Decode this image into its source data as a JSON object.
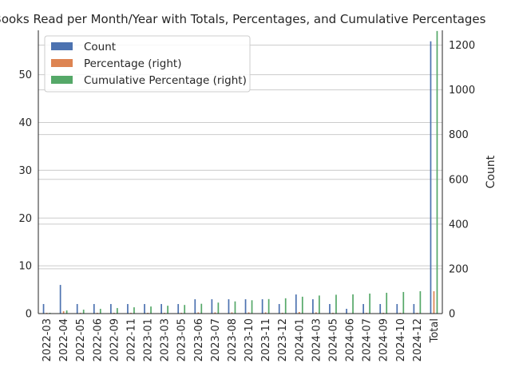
{
  "chart_data": {
    "type": "bar",
    "title": "Books Read per Month/Year with Totals, Percentages, and Cumulative Percentages",
    "xlabel": "",
    "ylabel": "",
    "ylabel_right": "Count",
    "categories": [
      "2022-03",
      "2022-04",
      "2022-05",
      "2022-06",
      "2022-09",
      "2022-11",
      "2023-01",
      "2023-03",
      "2023-05",
      "2023-06",
      "2023-07",
      "2023-08",
      "2023-10",
      "2023-11",
      "2023-12",
      "2024-01",
      "2024-03",
      "2024-05",
      "2024-06",
      "2024-07",
      "2024-09",
      "2024-10",
      "2024-12",
      "Total"
    ],
    "ylim": [
      0,
      59.3
    ],
    "ylim_right": [
      0,
      1266
    ],
    "yticks": [
      0,
      10,
      20,
      30,
      40,
      50
    ],
    "yticks_right": [
      0,
      200,
      400,
      600,
      800,
      1000,
      1200
    ],
    "grid": true,
    "legend_position": "top-left",
    "series": [
      {
        "name": "Count",
        "axis": "left",
        "color": "#4c72b0",
        "values": [
          2,
          6,
          2,
          2,
          2,
          2,
          2,
          2,
          2,
          3,
          3,
          3,
          3,
          3,
          2,
          4,
          3,
          2,
          1,
          2,
          2,
          2,
          2,
          57
        ]
      },
      {
        "name": "Percentage (right)",
        "axis": "right",
        "color": "#dd8452",
        "values": [
          3.5,
          10.5,
          3.5,
          3.5,
          3.5,
          3.5,
          3.5,
          3.5,
          3.5,
          5.3,
          5.3,
          5.3,
          5.3,
          5.3,
          3.5,
          7.0,
          5.3,
          3.5,
          1.8,
          3.5,
          3.5,
          3.5,
          3.5,
          100
        ]
      },
      {
        "name": "Cumulative Percentage (right)",
        "axis": "right",
        "color": "#55a868",
        "values": [
          3.5,
          14.0,
          17.5,
          21.1,
          24.6,
          28.1,
          31.6,
          35.1,
          38.6,
          43.9,
          49.1,
          54.4,
          59.6,
          64.9,
          68.4,
          75.4,
          80.7,
          84.2,
          86.0,
          89.5,
          93.0,
          96.5,
          100,
          1263
        ]
      }
    ]
  }
}
